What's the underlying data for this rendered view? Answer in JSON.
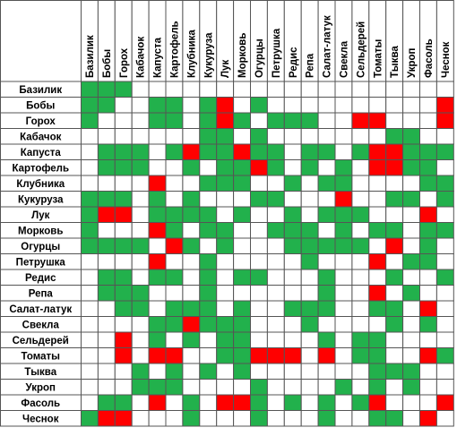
{
  "table": {
    "columns": [
      "Базилик",
      "Бобы",
      "Горох",
      "Кабачок",
      "Капуста",
      "Картофель",
      "Клубника",
      "Кукуруза",
      "Лук",
      "Морковь",
      "Огурцы",
      "Петрушка",
      "Редис",
      "Репа",
      "Салат-латук",
      "Свекла",
      "Сельдерей",
      "Томаты",
      "Тыква",
      "Укроп",
      "Фасоль",
      "Чеснок"
    ],
    "rows": [
      "Базилик",
      "Бобы",
      "Горох",
      "Кабачок",
      "Капуста",
      "Картофель",
      "Клубника",
      "Кукуруза",
      "Лук",
      "Морковь",
      "Огурцы",
      "Петрушка",
      "Редис",
      "Репа",
      "Салат-латук",
      "Свекла",
      "Сельдерей",
      "Томаты",
      "Тыква",
      "Укроп",
      "Фасоль",
      "Чеснок"
    ],
    "colors": {
      "g": "#22b14c",
      "r": "#ff0000",
      "w": "#ffffff"
    },
    "cells": [
      "gggwwwwwwwwwwwwwwwwwww",
      "ggwwggwgrwgwwwwwwwwwwr",
      "gwwwggwgrgwgggwwrrwwwr",
      "wwwwwwwggwgwwwwwwwggww",
      "wgggwgrggrggwggwgrrggg",
      "wgggwwgwggrgwgwgwrrggw",
      "wwwwrwwgggwwgwggwwwwgg",
      "gggwgwgwwwggwwwrwwggwg",
      "grrwggggwgwwgwgggwwwrw",
      "gwwwrgwggwwgggwgwggwgg",
      "ggggwrgwgwwwgggggwrwgw",
      "wwwwrwwgwwwwwgwwwrwggw",
      "wggwggwgwggwwwgwwwgwwg",
      "wgggwwwgwwwwwwgwwrwgww",
      "wwggwgggwgwwgggwwggwrw",
      "wwwwggrgggwwwgwwwwgwgw",
      "wwrwgwgwggwwwwgwggwwww",
      "wwrwrrwwggrrrwrwggwwrg",
      "wwwgwgwgwgwwwwwwwgggww",
      "wwwgggwwwwgwwwwgwgwgww",
      "wggwrwgwrrgwgwgwgrwwwr",
      "grrwwwgwwwgwwwgwwggwrw"
    ]
  }
}
